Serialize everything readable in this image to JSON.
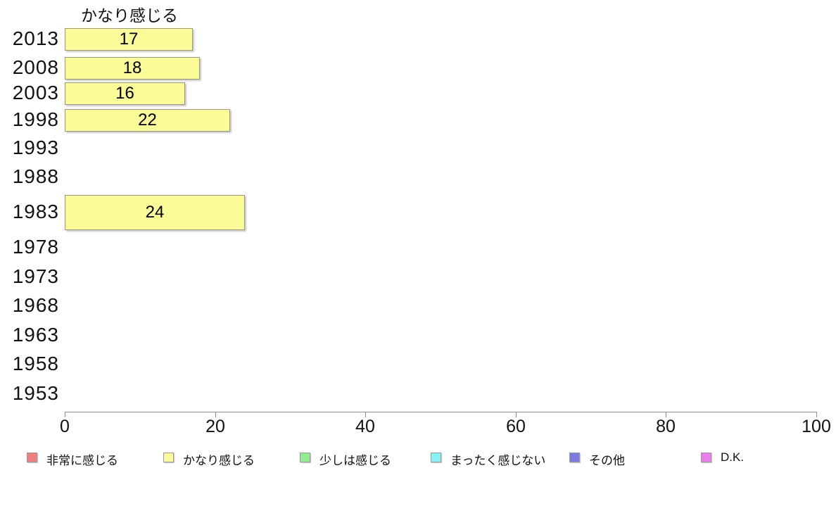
{
  "chart_data": {
    "type": "bar",
    "orientation": "horizontal",
    "title": "かなり感じる",
    "categories": [
      "2013",
      "2008",
      "2003",
      "1998",
      "1993",
      "1988",
      "1983",
      "1978",
      "1973",
      "1968",
      "1963",
      "1958",
      "1953"
    ],
    "values": [
      17,
      18,
      16,
      22,
      null,
      null,
      24,
      null,
      null,
      null,
      null,
      null,
      null
    ],
    "xlabel": "",
    "ylabel": "",
    "xlim": [
      0,
      100
    ],
    "x_ticks": [
      0,
      20,
      40,
      60,
      80,
      100
    ],
    "x_tick_labels": [
      "0",
      "20",
      "40",
      "60",
      "80",
      "100"
    ],
    "grid": false,
    "bar_color": "#fbfb98",
    "bar_border_color": "#99997a",
    "axis_color": "#8f8f8f",
    "legend_position": "bottom",
    "legend": [
      {
        "label": "非常に感じる",
        "color": "#f08080"
      },
      {
        "label": "かなり感じる",
        "color": "#fbfb98"
      },
      {
        "label": "少しは感じる",
        "color": "#90ee90"
      },
      {
        "label": "まったく感じない",
        "color": "#86f3f3"
      },
      {
        "label": "その他",
        "color": "#7b7be8"
      },
      {
        "label": "D.K.",
        "color": "#ee7bee"
      }
    ]
  }
}
